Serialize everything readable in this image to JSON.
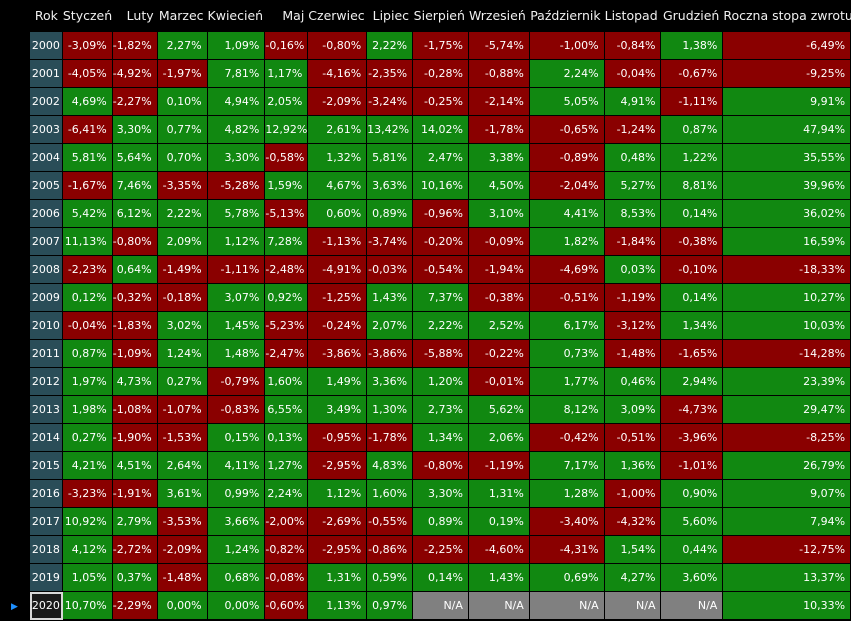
{
  "columns": [
    "Rok",
    "Styczeń",
    "Luty",
    "Marzec",
    "Kwiecień",
    "Maj",
    "Czerwiec",
    "Lipiec",
    "Sierpień",
    "Wrzesień",
    "Październik",
    "Listopad",
    "Grudzień",
    "Roczna stopa zwrotu"
  ],
  "selected_row_indicator": "▶",
  "colors": {
    "positive": "#118811",
    "negative": "#8a0000",
    "na": "#808080",
    "year_cell": "#2a4d58"
  },
  "rows": [
    {
      "year": "2000",
      "values": [
        "-3,09%",
        "-1,82%",
        "2,27%",
        "1,09%",
        "-0,16%",
        "-0,80%",
        "2,22%",
        "-1,75%",
        "-5,74%",
        "-1,00%",
        "-0,84%",
        "1,38%",
        "-6,49%"
      ]
    },
    {
      "year": "2001",
      "values": [
        "-4,05%",
        "-4,92%",
        "-1,97%",
        "7,81%",
        "1,17%",
        "-4,16%",
        "-2,35%",
        "-0,28%",
        "-0,88%",
        "2,24%",
        "-0,04%",
        "-0,67%",
        "-9,25%"
      ]
    },
    {
      "year": "2002",
      "values": [
        "4,69%",
        "-2,27%",
        "0,10%",
        "4,94%",
        "2,05%",
        "-2,09%",
        "-3,24%",
        "-0,25%",
        "-2,14%",
        "5,05%",
        "4,91%",
        "-1,11%",
        "9,91%"
      ]
    },
    {
      "year": "2003",
      "values": [
        "-6,41%",
        "3,30%",
        "0,77%",
        "4,82%",
        "12,92%",
        "2,61%",
        "13,42%",
        "14,02%",
        "-1,78%",
        "-0,65%",
        "-1,24%",
        "0,87%",
        "47,94%"
      ]
    },
    {
      "year": "2004",
      "values": [
        "5,81%",
        "5,64%",
        "0,70%",
        "3,30%",
        "-0,58%",
        "1,32%",
        "5,81%",
        "2,47%",
        "3,38%",
        "-0,89%",
        "0,48%",
        "1,22%",
        "35,55%"
      ]
    },
    {
      "year": "2005",
      "values": [
        "-1,67%",
        "7,46%",
        "-3,35%",
        "-5,28%",
        "1,59%",
        "4,67%",
        "3,63%",
        "10,16%",
        "4,50%",
        "-2,04%",
        "5,27%",
        "8,81%",
        "39,96%"
      ]
    },
    {
      "year": "2006",
      "values": [
        "5,42%",
        "6,12%",
        "2,22%",
        "5,78%",
        "-5,13%",
        "0,60%",
        "0,89%",
        "-0,96%",
        "3,10%",
        "4,41%",
        "8,53%",
        "0,14%",
        "36,02%"
      ]
    },
    {
      "year": "2007",
      "values": [
        "11,13%",
        "-0,80%",
        "2,09%",
        "1,12%",
        "7,28%",
        "-1,13%",
        "-3,74%",
        "-0,20%",
        "-0,09%",
        "1,82%",
        "-1,84%",
        "-0,38%",
        "16,59%"
      ]
    },
    {
      "year": "2008",
      "values": [
        "-2,23%",
        "0,64%",
        "-1,49%",
        "-1,11%",
        "-2,48%",
        "-4,91%",
        "-0,03%",
        "-0,54%",
        "-1,94%",
        "-4,69%",
        "0,03%",
        "-0,10%",
        "-18,33%"
      ]
    },
    {
      "year": "2009",
      "values": [
        "0,12%",
        "-0,32%",
        "-0,18%",
        "3,07%",
        "0,92%",
        "-1,25%",
        "1,43%",
        "7,37%",
        "-0,38%",
        "-0,51%",
        "-1,19%",
        "0,14%",
        "10,27%"
      ]
    },
    {
      "year": "2010",
      "values": [
        "-0,04%",
        "-1,83%",
        "3,02%",
        "1,45%",
        "-5,23%",
        "-0,24%",
        "2,07%",
        "2,22%",
        "2,52%",
        "6,17%",
        "-3,12%",
        "1,34%",
        "10,03%"
      ]
    },
    {
      "year": "2011",
      "values": [
        "0,87%",
        "-1,09%",
        "1,24%",
        "1,48%",
        "-2,47%",
        "-3,86%",
        "-3,86%",
        "-5,88%",
        "-0,22%",
        "0,73%",
        "-1,48%",
        "-1,65%",
        "-14,28%"
      ]
    },
    {
      "year": "2012",
      "values": [
        "1,97%",
        "4,73%",
        "0,27%",
        "-0,79%",
        "1,60%",
        "1,49%",
        "3,36%",
        "1,20%",
        "-0,01%",
        "1,77%",
        "0,46%",
        "2,94%",
        "23,39%"
      ]
    },
    {
      "year": "2013",
      "values": [
        "1,98%",
        "-1,08%",
        "-1,07%",
        "-0,83%",
        "6,55%",
        "3,49%",
        "1,30%",
        "2,73%",
        "5,62%",
        "8,12%",
        "3,09%",
        "-4,73%",
        "29,47%"
      ]
    },
    {
      "year": "2014",
      "values": [
        "0,27%",
        "-1,90%",
        "-1,53%",
        "0,15%",
        "0,13%",
        "-0,95%",
        "-1,78%",
        "1,34%",
        "2,06%",
        "-0,42%",
        "-0,51%",
        "-3,96%",
        "-8,25%"
      ]
    },
    {
      "year": "2015",
      "values": [
        "4,21%",
        "4,51%",
        "2,64%",
        "4,11%",
        "1,27%",
        "-2,95%",
        "4,83%",
        "-0,80%",
        "-1,19%",
        "7,17%",
        "1,36%",
        "-1,01%",
        "26,79%"
      ]
    },
    {
      "year": "2016",
      "values": [
        "-3,23%",
        "-1,91%",
        "3,61%",
        "0,99%",
        "2,24%",
        "1,12%",
        "1,60%",
        "3,30%",
        "1,31%",
        "1,28%",
        "-1,00%",
        "0,90%",
        "9,07%"
      ]
    },
    {
      "year": "2017",
      "values": [
        "10,92%",
        "2,79%",
        "-3,53%",
        "3,66%",
        "-2,00%",
        "-2,69%",
        "-0,55%",
        "0,89%",
        "0,19%",
        "-3,40%",
        "-4,32%",
        "5,60%",
        "7,94%"
      ]
    },
    {
      "year": "2018",
      "values": [
        "4,12%",
        "-2,72%",
        "-2,09%",
        "1,24%",
        "-0,82%",
        "-2,95%",
        "-0,86%",
        "-2,25%",
        "-4,60%",
        "-4,31%",
        "1,54%",
        "0,44%",
        "-12,75%"
      ]
    },
    {
      "year": "2019",
      "values": [
        "1,05%",
        "0,37%",
        "-1,48%",
        "0,68%",
        "-0,08%",
        "1,31%",
        "0,59%",
        "0,14%",
        "1,43%",
        "0,69%",
        "4,27%",
        "3,60%",
        "13,37%"
      ]
    },
    {
      "year": "2020",
      "selected": true,
      "values": [
        "10,70%",
        "-2,29%",
        "0,00%",
        "0,00%",
        "-0,60%",
        "1,13%",
        "0,97%",
        "N/A",
        "N/A",
        "N/A",
        "N/A",
        "N/A",
        "10,33%"
      ]
    }
  ]
}
